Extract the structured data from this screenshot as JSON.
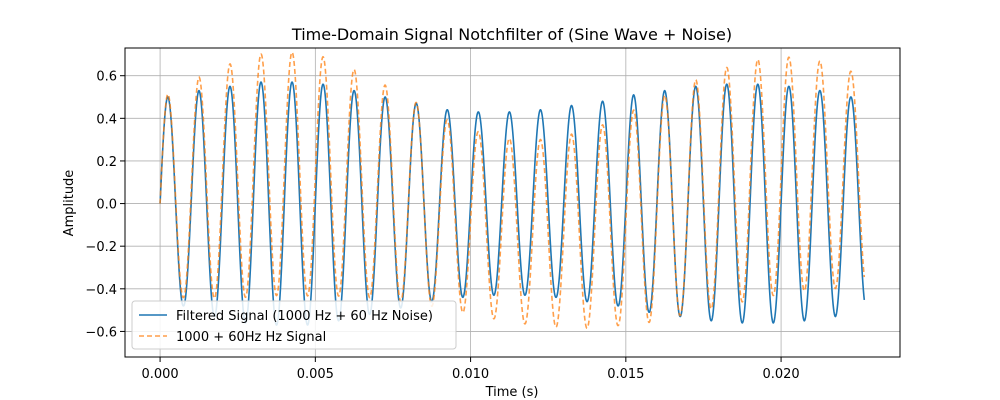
{
  "chart_data": {
    "type": "line",
    "title": "Time-Domain Signal Notchfilter of (Sine Wave + Noise)",
    "xlabel": "Time (s)",
    "ylabel": "Amplitude",
    "xlim": [
      -0.00113,
      0.02383
    ],
    "ylim": [
      -0.72,
      0.73
    ],
    "x_ticks": [
      0.0,
      0.005,
      0.01,
      0.015,
      0.02
    ],
    "x_tick_labels": [
      "0.000",
      "0.005",
      "0.010",
      "0.015",
      "0.020"
    ],
    "y_ticks": [
      -0.6,
      -0.4,
      -0.2,
      0.0,
      0.2,
      0.4,
      0.6
    ],
    "y_tick_labels": [
      "−0.6",
      "−0.4",
      "−0.2",
      "0.0",
      "0.2",
      "0.4",
      "0.6"
    ],
    "grid": true,
    "legend_position": "lower-left",
    "x_range": [
      0.0,
      0.02268
    ],
    "series": [
      {
        "name": "Filtered Signal (1000 Hz + 60 Hz Noise)",
        "color": "#1f77b4",
        "style": "solid",
        "frequency_hz": 1000,
        "peak_amplitudes": [
          0.5,
          0.53,
          0.55,
          0.57,
          0.57,
          0.56,
          0.53,
          0.5,
          0.47,
          0.44,
          0.43,
          0.43,
          0.44,
          0.46,
          0.48,
          0.51,
          0.53,
          0.55,
          0.56,
          0.56,
          0.55,
          0.53,
          0.5
        ],
        "trough_amplitudes": [
          -0.48,
          -0.53,
          -0.56,
          -0.57,
          -0.57,
          -0.55,
          -0.52,
          -0.49,
          -0.46,
          -0.44,
          -0.43,
          -0.43,
          -0.44,
          -0.46,
          -0.48,
          -0.51,
          -0.53,
          -0.55,
          -0.56,
          -0.56,
          -0.55,
          -0.53
        ]
      },
      {
        "name": "1000 + 60Hz Hz Signal",
        "color": "#ff7f0e",
        "style": "dashed",
        "frequency_hz": 1000,
        "offset_amplitude": 0.14,
        "offset_frequency_hz": 60
      }
    ]
  }
}
